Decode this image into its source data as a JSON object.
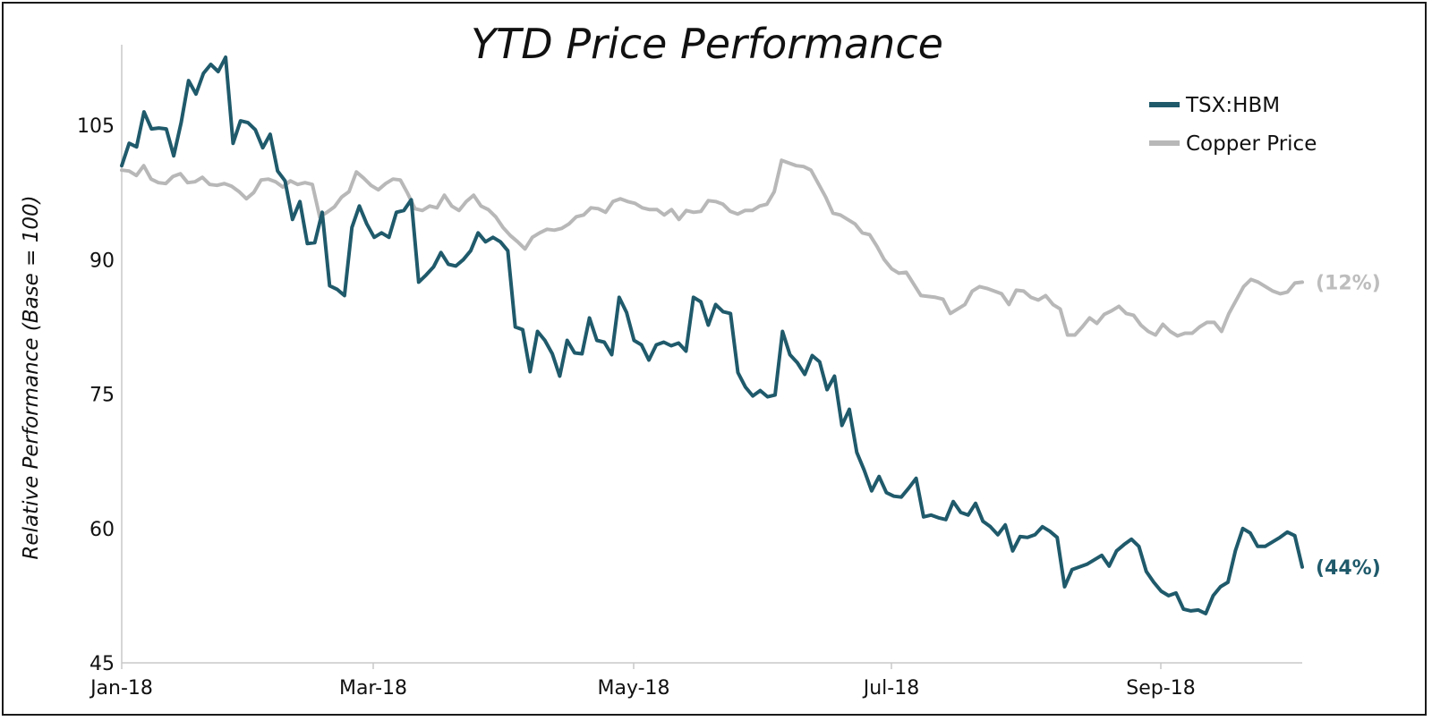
{
  "chart_data": {
    "type": "line",
    "title": "YTD Price Performance",
    "ylabel": "Relative Performance  (Base = 100)",
    "xlabel": "",
    "ylim": [
      45,
      114
    ],
    "yticks": [
      45,
      60,
      75,
      90,
      105
    ],
    "xticks": [
      "Jan-18",
      "Mar-18",
      "May-18",
      "Jul-18",
      "Sep-18"
    ],
    "legend_position": "top-right",
    "grid": false,
    "series": [
      {
        "name": "TSX:HBM",
        "color": "#1F5A6B",
        "end_label": "(44%)",
        "values": [
          100.5,
          103.0,
          102.6,
          106.5,
          104.6,
          104.7,
          104.6,
          101.6,
          105.3,
          110.0,
          108.5,
          110.8,
          111.8,
          111.0,
          112.6,
          103.0,
          105.5,
          105.3,
          104.5,
          102.5,
          104.0,
          99.9,
          98.8,
          94.5,
          96.5,
          91.8,
          91.9,
          95.3,
          87.1,
          86.7,
          86.0,
          93.6,
          96.0,
          94.0,
          92.5,
          93.0,
          92.5,
          95.3,
          95.5,
          96.7,
          87.5,
          88.3,
          89.2,
          90.8,
          89.5,
          89.3,
          90.0,
          91.0,
          93.0,
          92.0,
          92.5,
          92.0,
          91.0,
          82.5,
          82.2,
          77.5,
          82.0,
          81.0,
          79.5,
          77.0,
          81.0,
          79.6,
          79.5,
          83.5,
          81.0,
          80.8,
          79.4,
          85.8,
          84.1,
          81.0,
          80.5,
          78.8,
          80.5,
          80.8,
          80.4,
          80.7,
          79.8,
          85.8,
          85.3,
          82.7,
          85.0,
          84.2,
          84.0,
          77.4,
          75.8,
          74.8,
          75.4,
          74.7,
          74.9,
          82.0,
          79.4,
          78.5,
          77.2,
          79.3,
          78.6,
          75.5,
          77.0,
          71.5,
          73.3,
          68.5,
          66.5,
          64.2,
          65.8,
          64.0,
          63.6,
          63.5,
          64.5,
          65.6,
          61.3,
          61.5,
          61.2,
          61.0,
          63.0,
          61.8,
          61.5,
          62.8,
          60.8,
          60.2,
          59.3,
          60.4,
          57.5,
          59.1,
          59.0,
          59.3,
          60.2,
          59.7,
          59.0,
          53.5,
          55.4,
          55.7,
          56.0,
          56.5,
          57.0,
          55.8,
          57.5,
          58.2,
          58.8,
          58.0,
          55.2,
          54.0,
          53.0,
          52.5,
          52.8,
          51.0,
          50.8,
          50.9,
          50.5,
          52.5,
          53.5,
          54.0,
          57.5,
          60.0,
          59.5,
          58.0,
          58.0,
          58.5,
          59.0,
          59.6,
          59.2,
          55.7
        ]
      },
      {
        "name": "Copper Price",
        "color": "#B8B8B8",
        "end_label": "(12%)",
        "values": [
          100.0,
          99.9,
          99.4,
          100.5,
          99.0,
          98.6,
          98.5,
          99.3,
          99.6,
          98.6,
          98.7,
          99.2,
          98.4,
          98.3,
          98.5,
          98.2,
          97.6,
          96.8,
          97.5,
          98.9,
          99.0,
          98.7,
          98.1,
          98.8,
          98.4,
          98.6,
          98.4,
          94.8,
          95.3,
          95.9,
          97.0,
          97.6,
          99.8,
          99.1,
          98.3,
          97.8,
          98.5,
          99.0,
          98.9,
          97.4,
          95.7,
          95.5,
          96.0,
          95.8,
          97.2,
          96.0,
          95.5,
          96.5,
          97.2,
          96.0,
          95.6,
          94.8,
          93.6,
          92.7,
          92.0,
          91.2,
          92.5,
          93.0,
          93.4,
          93.3,
          93.5,
          94.0,
          94.8,
          95.0,
          95.8,
          95.7,
          95.3,
          96.5,
          96.8,
          96.5,
          96.3,
          95.8,
          95.6,
          95.6,
          95.0,
          95.6,
          94.5,
          95.5,
          95.3,
          95.4,
          96.6,
          96.5,
          96.2,
          95.4,
          95.1,
          95.5,
          95.5,
          96.0,
          96.2,
          97.6,
          101.1,
          100.8,
          100.5,
          100.4,
          100.0,
          98.5,
          97.0,
          95.2,
          95.0,
          94.5,
          94.0,
          93.0,
          92.8,
          91.5,
          90.0,
          89.0,
          88.5,
          88.6,
          87.3,
          86.0,
          85.9,
          85.8,
          85.6,
          84.0,
          84.5,
          85.0,
          86.5,
          87.0,
          86.8,
          86.5,
          86.2,
          85.0,
          86.6,
          86.5,
          85.8,
          85.5,
          86.0,
          85.0,
          84.5,
          81.6,
          81.6,
          82.5,
          83.5,
          82.9,
          83.9,
          84.3,
          84.8,
          84.0,
          83.8,
          82.7,
          82.0,
          81.6,
          82.8,
          82.0,
          81.5,
          81.8,
          81.8,
          82.5,
          83.0,
          83.0,
          82.0,
          84.0,
          85.5,
          87.0,
          87.8,
          87.5,
          87.0,
          86.5,
          86.2,
          86.4,
          87.4,
          87.5
        ]
      }
    ]
  }
}
